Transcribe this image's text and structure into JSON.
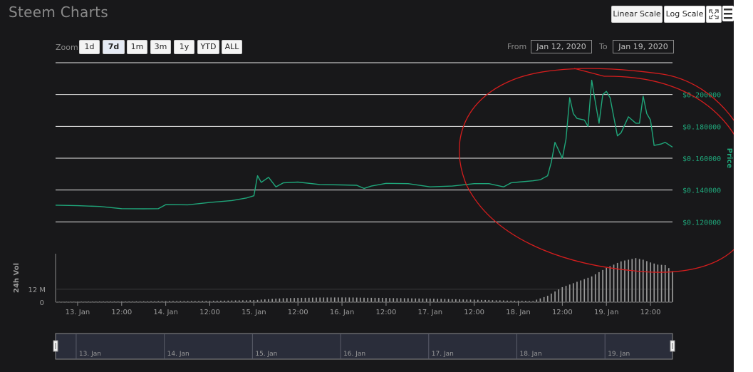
{
  "app": {
    "title": "Steem Charts"
  },
  "toolbar": {
    "linear_scale": "Linear Scale",
    "log_scale": "Log Scale",
    "fullscreen_icon": "fullscreen-icon",
    "menu_icon": "hamburger-menu-icon"
  },
  "range_selector": {
    "zoom_label": "Zoom",
    "buttons": [
      "1d",
      "7d",
      "1m",
      "3m",
      "1y",
      "YTD",
      "ALL"
    ],
    "active": "7d",
    "from_label": "From",
    "from_value": "Jan 12, 2020",
    "to_label": "To",
    "to_value": "Jan 19, 2020"
  },
  "chart_data": {
    "type": "line",
    "price_axis": {
      "label": "Price",
      "ticks": [
        "$0.120000",
        "$0.140000",
        "$0.160000",
        "$0.180000",
        "$0.200000"
      ],
      "ylim": [
        0.1,
        0.22
      ]
    },
    "volume_axis": {
      "label": "24h Vol",
      "ticks": [
        "0",
        "12 M"
      ]
    },
    "x_ticks": [
      "13. Jan",
      "12:00",
      "14. Jan",
      "12:00",
      "15. Jan",
      "12:00",
      "16. Jan",
      "12:00",
      "17. Jan",
      "12:00",
      "18. Jan",
      "12:00",
      "19. Jan",
      "12:00"
    ],
    "navigator_ticks": [
      "13. Jan",
      "14. Jan",
      "15. Jan",
      "16. Jan",
      "17. Jan",
      "18. Jan",
      "19. Jan"
    ],
    "x_range_hours": [
      -6,
      162
    ],
    "price_series": {
      "name": "Price",
      "color": "#1fa67a",
      "points": [
        [
          -6,
          0.1305
        ],
        [
          0,
          0.1302
        ],
        [
          6,
          0.1297
        ],
        [
          12,
          0.1283
        ],
        [
          18,
          0.1282
        ],
        [
          22,
          0.1283
        ],
        [
          24,
          0.1308
        ],
        [
          30,
          0.1307
        ],
        [
          36,
          0.1322
        ],
        [
          42,
          0.1334
        ],
        [
          46,
          0.135
        ],
        [
          48,
          0.1364
        ],
        [
          49,
          0.149
        ],
        [
          50,
          0.1448
        ],
        [
          52,
          0.148
        ],
        [
          54,
          0.142
        ],
        [
          56,
          0.1445
        ],
        [
          60,
          0.145
        ],
        [
          66,
          0.1435
        ],
        [
          72,
          0.1432
        ],
        [
          76,
          0.143
        ],
        [
          78,
          0.141
        ],
        [
          80,
          0.1425
        ],
        [
          84,
          0.1442
        ],
        [
          90,
          0.144
        ],
        [
          96,
          0.142
        ],
        [
          102,
          0.1425
        ],
        [
          108,
          0.144
        ],
        [
          112,
          0.144
        ],
        [
          116,
          0.142
        ],
        [
          118,
          0.1445
        ],
        [
          120,
          0.145
        ],
        [
          124,
          0.1458
        ],
        [
          126,
          0.1465
        ],
        [
          128,
          0.149
        ],
        [
          129,
          0.1575
        ],
        [
          130,
          0.17
        ],
        [
          132,
          0.16
        ],
        [
          133,
          0.172
        ],
        [
          134,
          0.198
        ],
        [
          135,
          0.188
        ],
        [
          136,
          0.185
        ],
        [
          138,
          0.184
        ],
        [
          139,
          0.18
        ],
        [
          140,
          0.209
        ],
        [
          141,
          0.195
        ],
        [
          142,
          0.182
        ],
        [
          143,
          0.2
        ],
        [
          144,
          0.202
        ],
        [
          145,
          0.198
        ],
        [
          146,
          0.186
        ],
        [
          147,
          0.174
        ],
        [
          148,
          0.176
        ],
        [
          150,
          0.186
        ],
        [
          152,
          0.182
        ],
        [
          153,
          0.182
        ],
        [
          154,
          0.199
        ],
        [
          155,
          0.188
        ],
        [
          156,
          0.184
        ],
        [
          157,
          0.168
        ],
        [
          159,
          0.169
        ],
        [
          160,
          0.17
        ],
        [
          162,
          0.167
        ]
      ]
    },
    "volume_series": {
      "name": "24h Vol",
      "color": "#8c8c8c",
      "points": [
        [
          -6,
          0.6
        ],
        [
          12,
          0.8
        ],
        [
          36,
          1.3
        ],
        [
          48,
          2.0
        ],
        [
          56,
          3.8
        ],
        [
          64,
          4.3
        ],
        [
          72,
          4.5
        ],
        [
          84,
          4.0
        ],
        [
          96,
          3.4
        ],
        [
          108,
          2.4
        ],
        [
          118,
          1.5
        ],
        [
          124,
          1.2
        ],
        [
          128,
          6.0
        ],
        [
          132,
          14.0
        ],
        [
          136,
          19.0
        ],
        [
          140,
          24.0
        ],
        [
          144,
          32.0
        ],
        [
          148,
          38.0
        ],
        [
          152,
          41.0
        ],
        [
          154,
          39.5
        ],
        [
          156,
          37.0
        ],
        [
          158,
          35.0
        ],
        [
          160,
          34.5
        ],
        [
          162,
          29.0
        ]
      ],
      "max": 45
    }
  },
  "annotation": {
    "description": "red hand-drawn ellipse",
    "color": "#d41d1d"
  }
}
